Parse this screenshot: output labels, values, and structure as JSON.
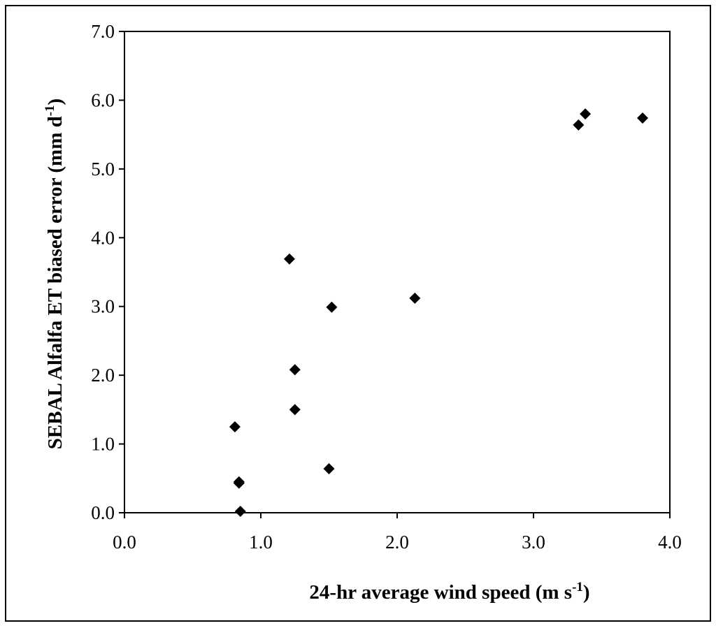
{
  "chart_data": {
    "type": "scatter",
    "title": "",
    "xlabel": "24-hr average wind speed (m s",
    "xlabel_sup": "-1",
    "xlabel_tail": ")",
    "ylabel": "SEBAL Alfalfa ET biased error (mm d",
    "ylabel_sup": "-1",
    "ylabel_tail": ")",
    "xlim": [
      0,
      4
    ],
    "ylim": [
      0,
      7
    ],
    "x_ticks": [
      "0.0",
      "1.0",
      "2.0",
      "3.0",
      "4.0"
    ],
    "y_ticks": [
      "0.0",
      "1.0",
      "2.0",
      "3.0",
      "4.0",
      "5.0",
      "6.0",
      "7.0"
    ],
    "grid": false,
    "marker": "diamond",
    "marker_color": "#000000",
    "points": [
      {
        "x": 0.81,
        "y": 1.25
      },
      {
        "x": 0.84,
        "y": 0.45
      },
      {
        "x": 0.84,
        "y": 0.43
      },
      {
        "x": 0.85,
        "y": 0.02
      },
      {
        "x": 1.21,
        "y": 3.69
      },
      {
        "x": 1.25,
        "y": 2.08
      },
      {
        "x": 1.25,
        "y": 1.5
      },
      {
        "x": 1.5,
        "y": 0.64
      },
      {
        "x": 1.52,
        "y": 2.99
      },
      {
        "x": 2.13,
        "y": 3.12
      },
      {
        "x": 3.33,
        "y": 5.64
      },
      {
        "x": 3.38,
        "y": 5.8
      },
      {
        "x": 3.8,
        "y": 5.74
      }
    ]
  }
}
